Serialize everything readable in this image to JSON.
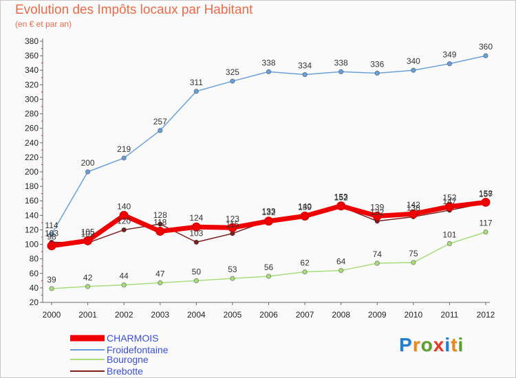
{
  "title": "Evolution des Impôts locaux par Habitant",
  "subtitle": "(en € et par an)",
  "logo": "Proxiti",
  "chart_data": {
    "type": "line",
    "x": [
      2000,
      2001,
      2002,
      2003,
      2004,
      2005,
      2006,
      2007,
      2008,
      2009,
      2010,
      2011,
      2012
    ],
    "yticks": [
      20,
      40,
      60,
      80,
      100,
      120,
      140,
      160,
      180,
      200,
      220,
      240,
      260,
      280,
      300,
      320,
      340,
      360,
      380
    ],
    "ylim": [
      20,
      380
    ],
    "grid": false,
    "legend_position": "bottom-left",
    "series": [
      {
        "name": "CHARMOIS",
        "color": "#ee0000",
        "values": [
          98,
          105,
          140,
          118,
          124,
          123,
          132,
          139,
          153,
          139,
          142,
          152,
          158
        ]
      },
      {
        "name": "Froidefontaine",
        "color": "#6aa0d8",
        "values": [
          114,
          200,
          219,
          257,
          311,
          325,
          338,
          334,
          338,
          336,
          340,
          349,
          360
        ]
      },
      {
        "name": "Bourogne",
        "color": "#a8dc7c",
        "values": [
          39,
          42,
          44,
          47,
          50,
          53,
          56,
          62,
          64,
          74,
          75,
          101,
          117
        ]
      },
      {
        "name": "Brebotte",
        "color": "#7a1f1f",
        "values": [
          103,
          102,
          120,
          128,
          103,
          115,
          133,
          140,
          152,
          132,
          138,
          147,
          157
        ]
      }
    ]
  }
}
